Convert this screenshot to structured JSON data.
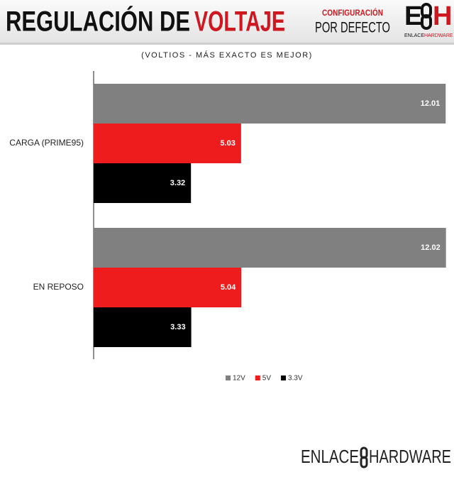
{
  "header": {
    "title": [
      "REGULACIÓN DE",
      "VOLTAJE"
    ],
    "config": [
      "CONFIGURACIÓN",
      "POR DEFECTO"
    ],
    "logo_letters": [
      "E",
      "H"
    ],
    "logo_caption": [
      "ENLACE",
      "HARDWARE"
    ]
  },
  "footer": [
    "ENLACE",
    "HARDWARE"
  ],
  "chart_data": {
    "type": "hbar",
    "subtitle": "(VOLTIOS - MÁS EXACTO ES MEJOR)",
    "categories": [
      "CARGA (PRIME95)",
      "EN REPOSO"
    ],
    "series": [
      {
        "name": "12V",
        "color": "#808080",
        "values": [
          12.01,
          12.02
        ]
      },
      {
        "name": "5V",
        "color": "#ee1c1c",
        "values": [
          5.03,
          5.04
        ]
      },
      {
        "name": "3.3V",
        "color": "#000000",
        "values": [
          3.32,
          3.33
        ]
      }
    ],
    "xlim": [
      0,
      12.1
    ],
    "legend": "bottom"
  }
}
